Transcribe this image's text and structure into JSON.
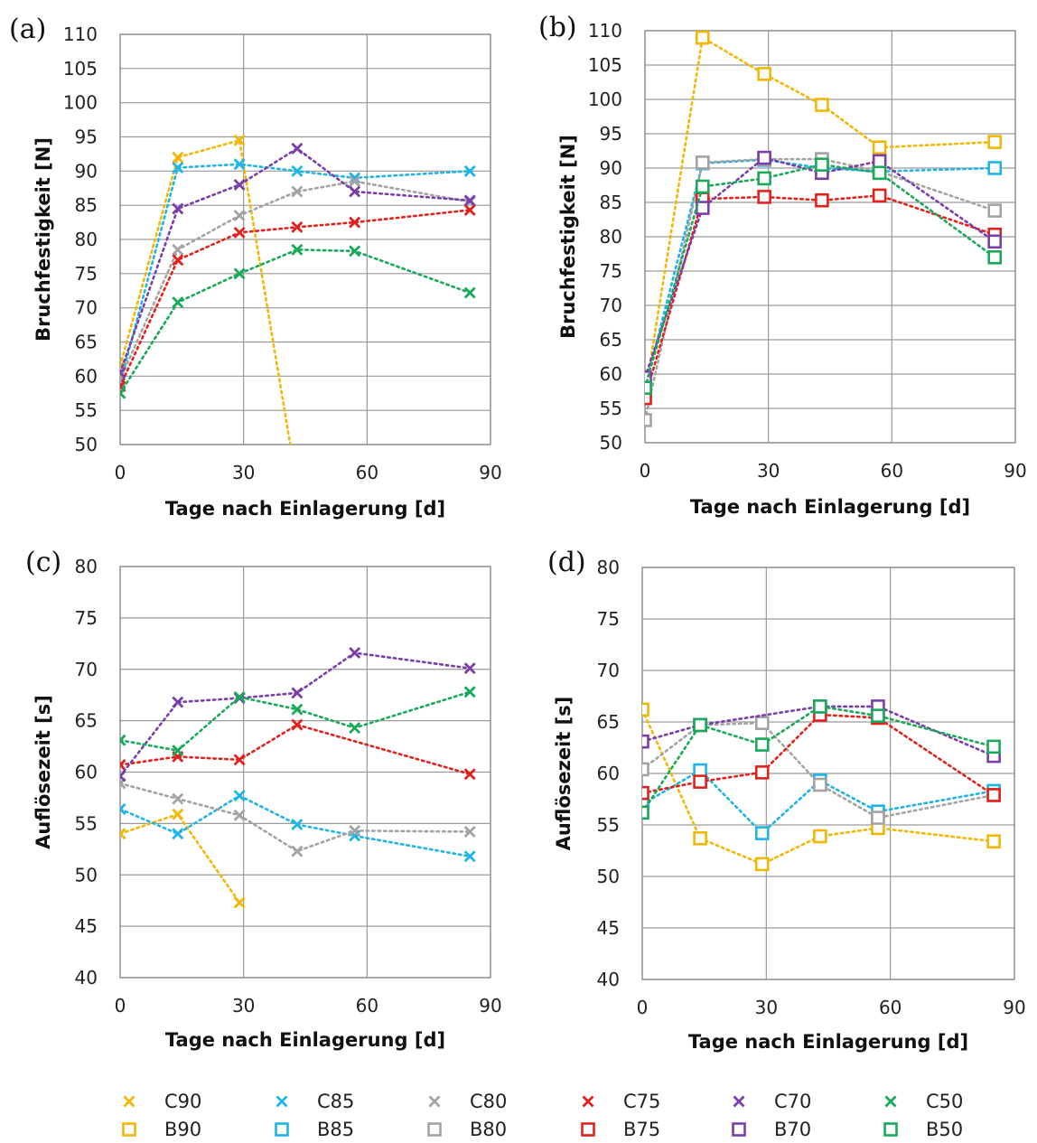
{
  "colors": {
    "90": "#f2b705",
    "85": "#1fb4e6",
    "80": "#a3a3a3",
    "75": "#e2211c",
    "70": "#7a3ea8",
    "50": "#1aa85a"
  },
  "legend": {
    "cross_series": [
      {
        "name": "C90",
        "color_key": "90"
      },
      {
        "name": "C85",
        "color_key": "85"
      },
      {
        "name": "C80",
        "color_key": "80"
      },
      {
        "name": "C75",
        "color_key": "75"
      },
      {
        "name": "C70",
        "color_key": "70"
      },
      {
        "name": "C50",
        "color_key": "50"
      }
    ],
    "square_series": [
      {
        "name": "B90",
        "color_key": "90"
      },
      {
        "name": "B85",
        "color_key": "85"
      },
      {
        "name": "B80",
        "color_key": "80"
      },
      {
        "name": "B75",
        "color_key": "75"
      },
      {
        "name": "B70",
        "color_key": "70"
      },
      {
        "name": "B50",
        "color_key": "50"
      }
    ]
  },
  "chart_data": [
    {
      "panel_label": "(a)",
      "type": "line",
      "marker": "x",
      "xlabel": "Tage nach Einlagerung [d]",
      "ylabel": "Bruchfestigkeit [N]",
      "xlim": [
        0,
        90
      ],
      "ylim": [
        50,
        110
      ],
      "xticks": [
        0,
        30,
        60,
        90
      ],
      "yticks": [
        50,
        55,
        60,
        65,
        70,
        75,
        80,
        85,
        90,
        95,
        100,
        105,
        110
      ],
      "grid": true,
      "x": [
        0,
        14,
        29,
        43,
        57,
        85
      ],
      "series": [
        {
          "name": "C90",
          "color_key": "90",
          "values": [
            61.5,
            92,
            94.5,
            44,
            null,
            null
          ]
        },
        {
          "name": "C85",
          "color_key": "85",
          "values": [
            59,
            90.5,
            91,
            90,
            89,
            90
          ]
        },
        {
          "name": "C80",
          "color_key": "80",
          "values": [
            59.5,
            78.5,
            83.5,
            87,
            88.5,
            85.5
          ]
        },
        {
          "name": "C75",
          "color_key": "75",
          "values": [
            58.5,
            77,
            81,
            81.8,
            82.5,
            84.3
          ]
        },
        {
          "name": "C70",
          "color_key": "70",
          "values": [
            60.5,
            84.5,
            88,
            93.3,
            87,
            85.7
          ]
        },
        {
          "name": "C50",
          "color_key": "50",
          "values": [
            57.5,
            70.8,
            75,
            78.5,
            78.3,
            72.2
          ]
        }
      ]
    },
    {
      "panel_label": "(b)",
      "type": "line",
      "marker": "square",
      "xlabel": "Tage nach Einlagerung [d]",
      "ylabel": "Bruchfestigkeit [N]",
      "xlim": [
        0,
        90
      ],
      "ylim": [
        50,
        110
      ],
      "xticks": [
        0,
        30,
        60,
        90
      ],
      "yticks": [
        50,
        55,
        60,
        65,
        70,
        75,
        80,
        85,
        90,
        95,
        100,
        105,
        110
      ],
      "grid": true,
      "x": [
        0,
        14,
        29,
        43,
        57,
        85
      ],
      "series": [
        {
          "name": "B90",
          "color_key": "90",
          "values": [
            57,
            109,
            103.7,
            99.2,
            93,
            93.8
          ]
        },
        {
          "name": "B85",
          "color_key": "85",
          "values": [
            58,
            90.7,
            91.2,
            90,
            89.5,
            90
          ]
        },
        {
          "name": "B80",
          "color_key": "80",
          "values": [
            53.3,
            90.8,
            91.3,
            91.3,
            89.5,
            83.8
          ]
        },
        {
          "name": "B75",
          "color_key": "75",
          "values": [
            56.5,
            85.5,
            85.8,
            85.3,
            86,
            80.3
          ]
        },
        {
          "name": "B70",
          "color_key": "70",
          "values": [
            59.5,
            84.2,
            91.5,
            89.3,
            91,
            79.3
          ]
        },
        {
          "name": "B50",
          "color_key": "50",
          "values": [
            58,
            87.3,
            88.5,
            90.5,
            89.3,
            77
          ]
        }
      ]
    },
    {
      "panel_label": "(c)",
      "type": "line",
      "marker": "x",
      "xlabel": "Tage nach Einlagerung [d]",
      "ylabel": "Auflösezeit [s]",
      "xlim": [
        0,
        90
      ],
      "ylim": [
        40,
        80
      ],
      "xticks": [
        0,
        30,
        60,
        90
      ],
      "yticks": [
        40,
        45,
        50,
        55,
        60,
        65,
        70,
        75,
        80
      ],
      "grid": true,
      "x": [
        0,
        14,
        29,
        43,
        57,
        85
      ],
      "series": [
        {
          "name": "C90",
          "color_key": "90",
          "values": [
            54,
            55.9,
            47.3,
            null,
            null,
            null
          ]
        },
        {
          "name": "C85",
          "color_key": "85",
          "values": [
            56.4,
            54,
            57.7,
            54.9,
            53.8,
            51.8
          ]
        },
        {
          "name": "C80",
          "color_key": "80",
          "values": [
            58.9,
            57.4,
            55.8,
            52.3,
            54.3,
            54.2
          ]
        },
        {
          "name": "C75",
          "color_key": "75",
          "values": [
            60.7,
            61.5,
            61.2,
            64.6,
            null,
            59.8
          ]
        },
        {
          "name": "C70",
          "color_key": "70",
          "values": [
            59.6,
            66.8,
            67.2,
            67.7,
            71.6,
            70.1
          ]
        },
        {
          "name": "C50",
          "color_key": "50",
          "values": [
            63.1,
            62.1,
            67.3,
            66.1,
            64.3,
            67.8
          ]
        }
      ]
    },
    {
      "panel_label": "(d)",
      "type": "line",
      "marker": "square",
      "xlabel": "Tage nach Einlagerung [d]",
      "ylabel": "Auflösezeit [s]",
      "xlim": [
        0,
        90
      ],
      "ylim": [
        40,
        80
      ],
      "xticks": [
        0,
        30,
        60,
        90
      ],
      "yticks": [
        40,
        45,
        50,
        55,
        60,
        65,
        70,
        75,
        80
      ],
      "grid": true,
      "x": [
        0,
        14,
        29,
        43,
        57,
        85
      ],
      "series": [
        {
          "name": "B90",
          "color_key": "90",
          "values": [
            66.2,
            53.7,
            51.2,
            53.9,
            54.7,
            53.4
          ]
        },
        {
          "name": "B85",
          "color_key": "85",
          "values": [
            57,
            60.3,
            54.2,
            59.3,
            56.3,
            58.3
          ]
        },
        {
          "name": "B80",
          "color_key": "80",
          "values": [
            60.4,
            64.7,
            64.9,
            58.9,
            55.7,
            57.9
          ]
        },
        {
          "name": "B75",
          "color_key": "75",
          "values": [
            58.1,
            59.2,
            60.1,
            65.7,
            65.4,
            57.9
          ]
        },
        {
          "name": "B70",
          "color_key": "70",
          "values": [
            63.1,
            64.7,
            null,
            66.5,
            66.5,
            61.7
          ]
        },
        {
          "name": "B50",
          "color_key": "50",
          "values": [
            56.2,
            64.7,
            62.8,
            66.5,
            65.6,
            62.6
          ]
        }
      ]
    }
  ]
}
